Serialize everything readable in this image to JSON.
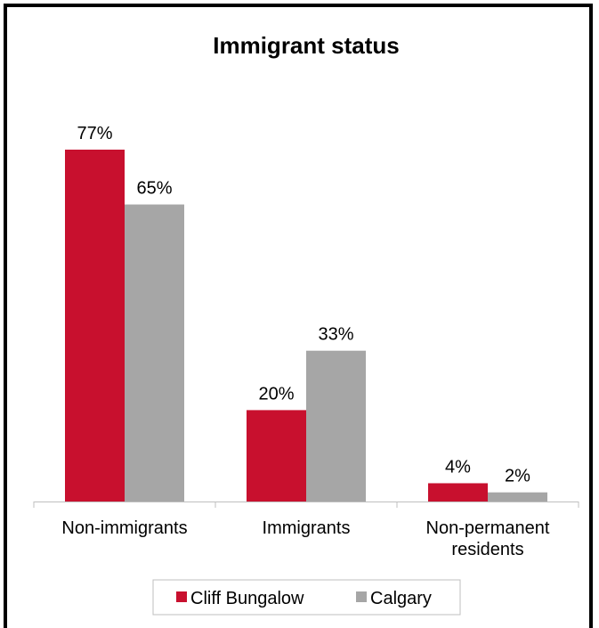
{
  "chart_data": {
    "type": "bar",
    "title": "Immigrant status",
    "categories": [
      [
        "Non-immigrants"
      ],
      [
        "Immigrants"
      ],
      [
        "Non-permanent",
        "residents"
      ]
    ],
    "series": [
      {
        "name": "Cliff Bungalow",
        "color": "#c8102e",
        "values": [
          77,
          20,
          4
        ],
        "labels": [
          "77%",
          "20%",
          "4%"
        ]
      },
      {
        "name": "Calgary",
        "color": "#a6a6a6",
        "values": [
          65,
          33,
          2
        ],
        "labels": [
          "65%",
          "33%",
          "2%"
        ]
      }
    ],
    "ylim": [
      0,
      100
    ],
    "grid": false,
    "legend_position": "bottom"
  }
}
